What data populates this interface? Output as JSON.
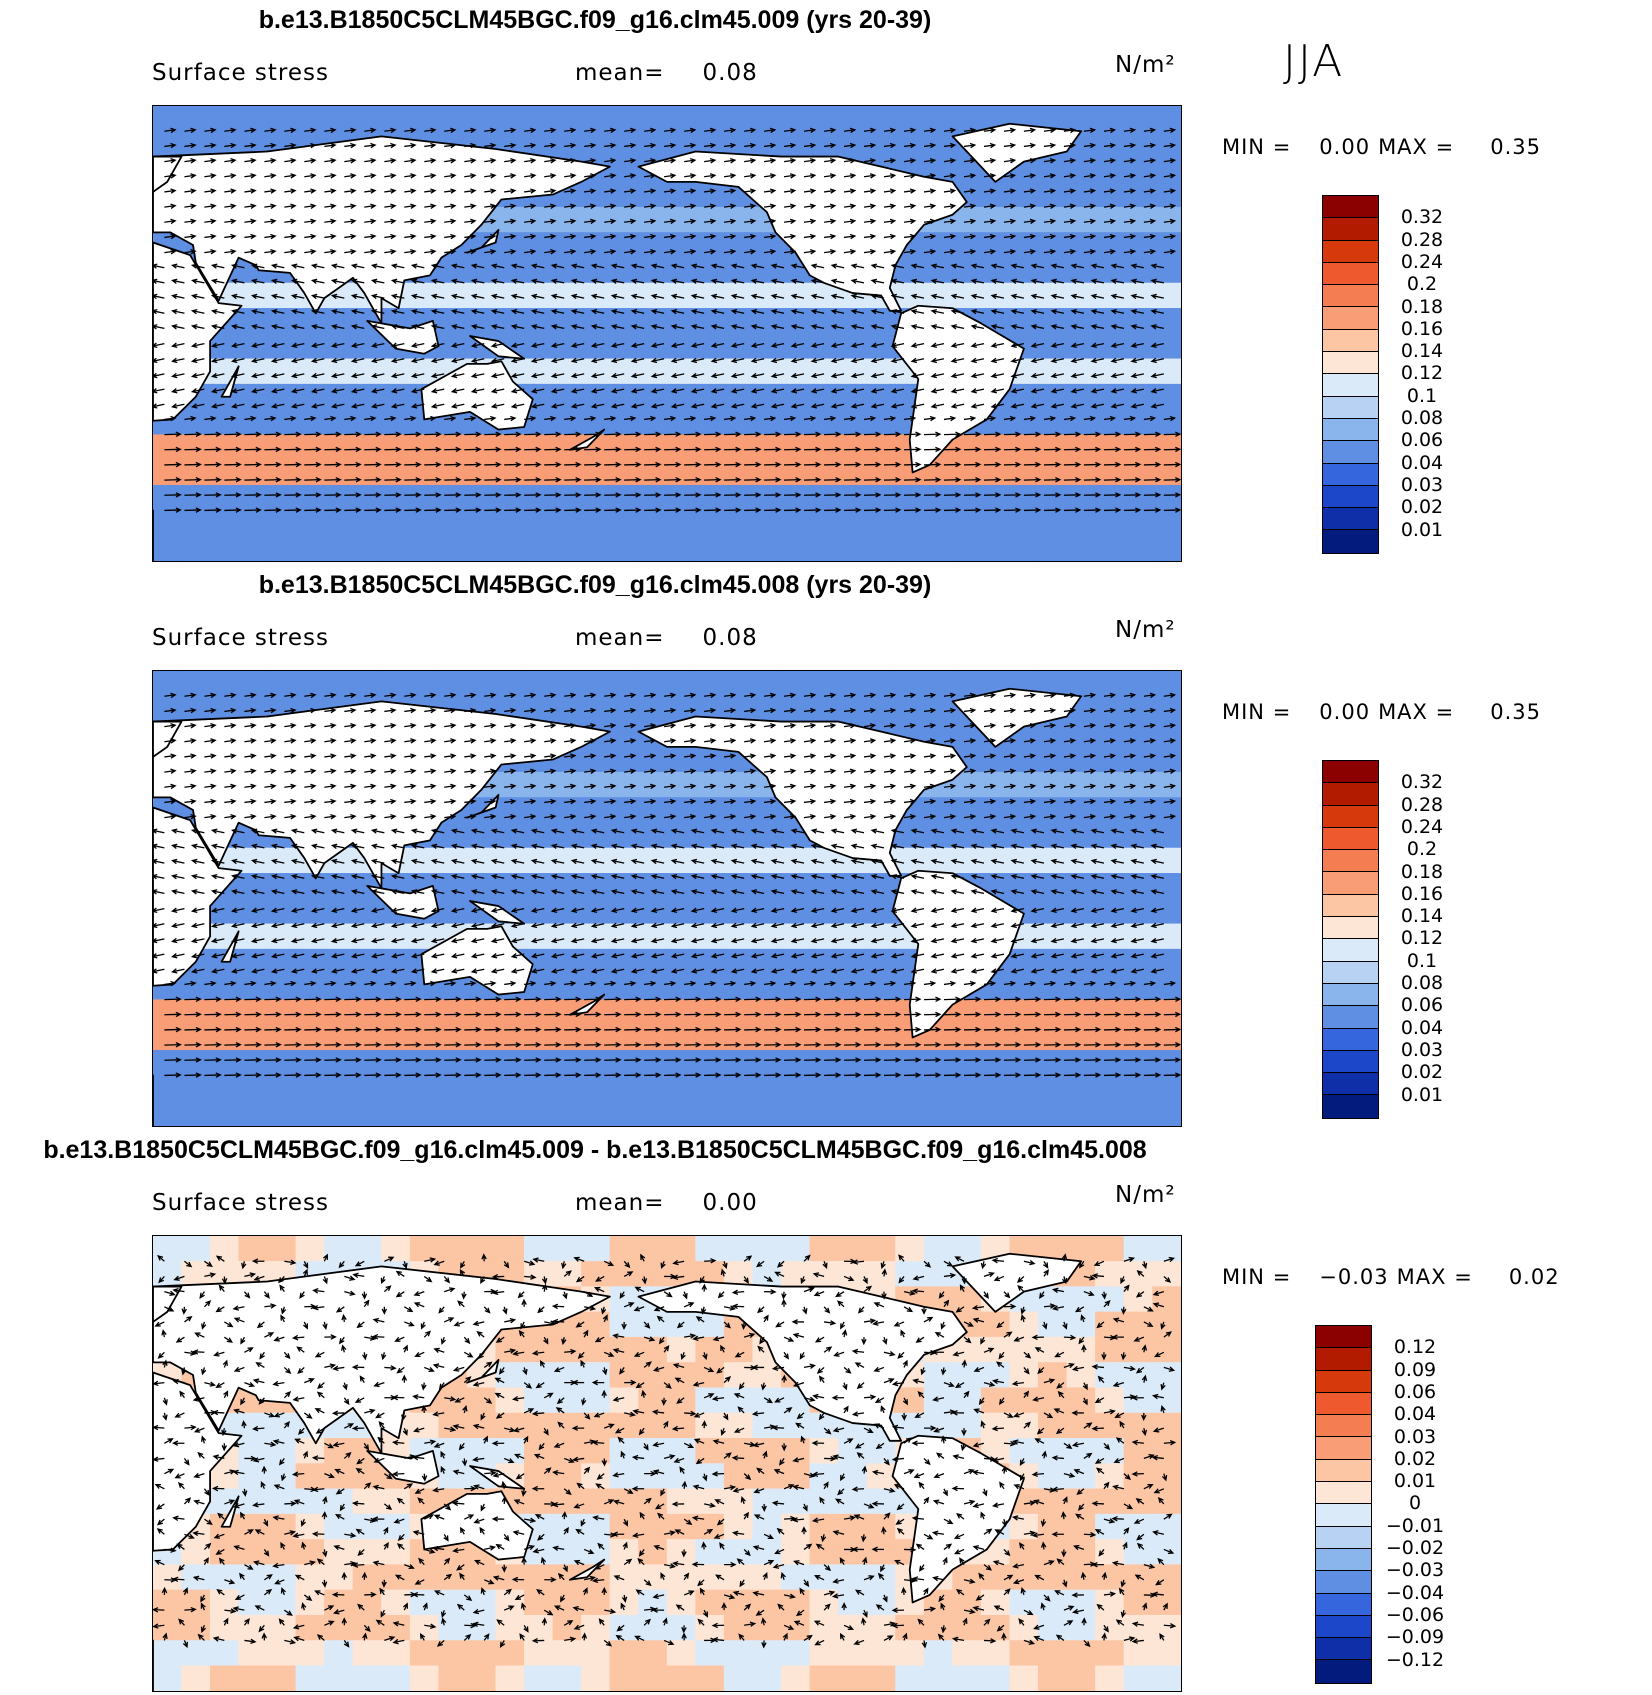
{
  "season": "JJA",
  "panels": [
    {
      "title": "b.e13.B1850C5CLM45BGC.f09_g16.clm45.009 (yrs 20-39)",
      "variable": "Surface stress",
      "mean_label": "mean=",
      "mean_value": "0.08",
      "units": "N/m²",
      "min_label": "MIN =",
      "min_value": "0.00",
      "max_label": "MAX =",
      "max_value": "0.35",
      "colorbar_labels": [
        "0.32",
        "0.28",
        "0.24",
        "0.2",
        "0.18",
        "0.16",
        "0.14",
        "0.12",
        "0.1",
        "0.08",
        "0.06",
        "0.04",
        "0.03",
        "0.02",
        "0.01"
      ],
      "colorbar_colors": [
        "#8b0000",
        "#b31b00",
        "#d63a0c",
        "#ee5a2e",
        "#f47d52",
        "#f99d77",
        "#fcc6a5",
        "#fde6d6",
        "#dbeaf8",
        "#b7d2f2",
        "#8ab4ec",
        "#5f8fe3",
        "#3566de",
        "#1c47c8",
        "#0f2fa8",
        "#041b7e"
      ],
      "mean_field": "positive"
    },
    {
      "title": "b.e13.B1850C5CLM45BGC.f09_g16.clm45.008 (yrs 20-39)",
      "variable": "Surface stress",
      "mean_label": "mean=",
      "mean_value": "0.08",
      "units": "N/m²",
      "min_label": "MIN =",
      "min_value": "0.00",
      "max_label": "MAX =",
      "max_value": "0.35",
      "colorbar_labels": [
        "0.32",
        "0.28",
        "0.24",
        "0.2",
        "0.18",
        "0.16",
        "0.14",
        "0.12",
        "0.1",
        "0.08",
        "0.06",
        "0.04",
        "0.03",
        "0.02",
        "0.01"
      ],
      "colorbar_colors": [
        "#8b0000",
        "#b31b00",
        "#d63a0c",
        "#ee5a2e",
        "#f47d52",
        "#f99d77",
        "#fcc6a5",
        "#fde6d6",
        "#dbeaf8",
        "#b7d2f2",
        "#8ab4ec",
        "#5f8fe3",
        "#3566de",
        "#1c47c8",
        "#0f2fa8",
        "#041b7e"
      ],
      "mean_field": "positive"
    },
    {
      "title": "b.e13.B1850C5CLM45BGC.f09_g16.clm45.009 - b.e13.B1850C5CLM45BGC.f09_g16.clm45.008",
      "variable": "Surface stress",
      "mean_label": "mean=",
      "mean_value": "0.00",
      "units": "N/m²",
      "min_label": "MIN =",
      "min_value": "−0.03",
      "max_label": "MAX =",
      "max_value": "0.02",
      "colorbar_labels": [
        "0.12",
        "0.09",
        "0.06",
        "0.04",
        "0.03",
        "0.02",
        "0.01",
        "0",
        "−0.01",
        "−0.02",
        "−0.03",
        "−0.04",
        "−0.06",
        "−0.09",
        "−0.12"
      ],
      "colorbar_colors": [
        "#8b0000",
        "#b31b00",
        "#d63a0c",
        "#ee5a2e",
        "#f47d52",
        "#f99d77",
        "#fcc6a5",
        "#fde6d6",
        "#dbeaf8",
        "#b7d2f2",
        "#8ab4ec",
        "#5f8fe3",
        "#3566de",
        "#1c47c8",
        "#0f2fa8",
        "#041b7e"
      ],
      "mean_field": "difference"
    }
  ]
}
